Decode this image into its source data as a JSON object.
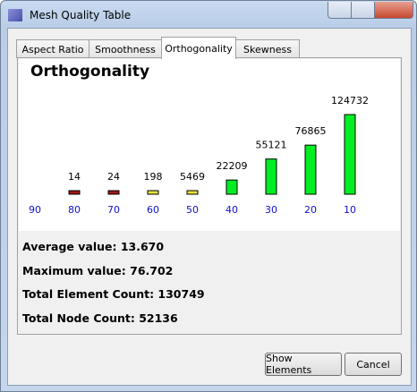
{
  "window": {
    "title": "Mesh Quality Table"
  },
  "tabs": [
    "Aspect Ratio",
    "Smoothness",
    "Orthogonality",
    "Skewness"
  ],
  "chart_data": {
    "type": "bar",
    "title": "Orthogonality",
    "categories": [
      "90",
      "80",
      "70",
      "60",
      "50",
      "40",
      "30",
      "20",
      "10"
    ],
    "values": [
      null,
      14,
      24,
      198,
      5469,
      22209,
      55121,
      76865,
      124732
    ],
    "colors": [
      null,
      "#a01818",
      "#a01818",
      "#e8e040",
      "#e8e040",
      "#00ee22",
      "#00ee22",
      "#00ee22",
      "#00ee22"
    ]
  },
  "stats": [
    "Average value: 13.670",
    "Maximum value: 76.702",
    "Total Element Count: 130749",
    "Total Node Count: 52136"
  ],
  "buttons": [
    "Show Elements",
    "Cancel"
  ]
}
